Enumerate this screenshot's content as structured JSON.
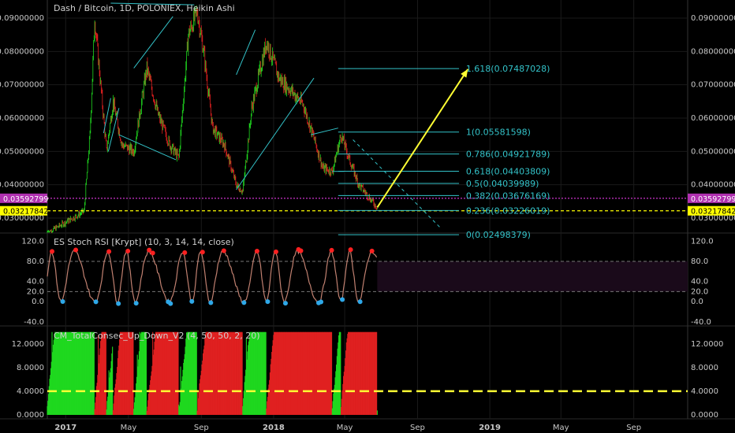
{
  "header": {
    "title": "Dash / Bitcoin, 1D, POLONIEX, Heikin Ashi"
  },
  "colors": {
    "background": "#000000",
    "grid": "#1a1a1a",
    "text": "#c8c8c8",
    "bull": "#1fd81f",
    "bear": "#e02020",
    "fib": "#33c2c8",
    "arrow": "#ffff33",
    "magenta_line": "#cc33cc",
    "yellow_line": "#ffff00",
    "stoch_line": "#c08070",
    "stoch_dot_high": "#ff2020",
    "stoch_dot_low": "#2ea8e8"
  },
  "chart_data": [
    {
      "type": "candlestick",
      "title": "Dash / Bitcoin, 1D, POLONIEX, Heikin Ashi",
      "x_tick_labels": [
        "2017",
        "May",
        "Sep",
        "2018",
        "May",
        "Sep",
        "2019",
        "May",
        "Sep"
      ],
      "y_tick_labels": [
        "0.03000000",
        "0.04000000",
        "0.05000000",
        "0.06000000",
        "0.07000000",
        "0.08000000",
        "0.09000000"
      ],
      "ylim": [
        0.0255,
        0.0945
      ],
      "price_path": [
        [
          "2016-12-15",
          0.0255
        ],
        [
          "2017-02-15",
          0.032
        ],
        [
          "2017-02-25",
          0.055
        ],
        [
          "2017-03-05",
          0.09
        ],
        [
          "2017-03-15",
          0.07
        ],
        [
          "2017-03-25",
          0.05
        ],
        [
          "2017-04-05",
          0.065
        ],
        [
          "2017-04-20",
          0.052
        ],
        [
          "2017-05-10",
          0.05
        ],
        [
          "2017-06-01",
          0.075
        ],
        [
          "2017-06-20",
          0.061
        ],
        [
          "2017-07-10",
          0.052
        ],
        [
          "2017-07-25",
          0.048
        ],
        [
          "2017-08-10",
          0.085
        ],
        [
          "2017-08-25",
          0.092
        ],
        [
          "2017-09-05",
          0.08
        ],
        [
          "2017-09-20",
          0.057
        ],
        [
          "2017-10-10",
          0.052
        ],
        [
          "2017-10-30",
          0.04
        ],
        [
          "2017-11-10",
          0.038
        ],
        [
          "2017-11-25",
          0.063
        ],
        [
          "2017-12-20",
          0.083
        ],
        [
          "2018-01-10",
          0.072
        ],
        [
          "2018-02-01",
          0.068
        ],
        [
          "2018-02-20",
          0.064
        ],
        [
          "2018-03-10",
          0.054
        ],
        [
          "2018-03-25",
          0.045
        ],
        [
          "2018-04-10",
          0.044
        ],
        [
          "2018-04-25",
          0.055
        ],
        [
          "2018-05-10",
          0.047
        ],
        [
          "2018-05-25",
          0.04
        ],
        [
          "2018-06-10",
          0.0365
        ],
        [
          "2018-06-25",
          0.0332
        ]
      ],
      "horizontal_lines": [
        {
          "value": 0.03592799,
          "label": "0.03592799",
          "style": "dotted",
          "color": "#cc33cc"
        },
        {
          "value": 0.03217842,
          "label": "0.03217842",
          "style": "dashed",
          "color": "#ffff00"
        }
      ],
      "fibonacci": {
        "start_date": "2018-04-20",
        "end_date": "2018-11-10",
        "levels": [
          {
            "value": 0.07487028,
            "label": "1.618(0.07487028)"
          },
          {
            "value": 0.05581598,
            "label": "1(0.05581598)"
          },
          {
            "value": 0.04921789,
            "label": "0.786(0.04921789)"
          },
          {
            "value": 0.04403809,
            "label": "0.618(0.04403809)"
          },
          {
            "value": 0.04039989,
            "label": "0.5(0.04039989)"
          },
          {
            "value": 0.03676169,
            "label": "0.382(0.03676169)"
          },
          {
            "value": 0.03226019,
            "label": "0.236(0.03226019)"
          },
          {
            "value": 0.02498379,
            "label": "0(0.02498379)"
          }
        ]
      },
      "arrow": {
        "from": [
          "2018-06-25",
          0.0332
        ],
        "to": [
          "2018-11-25",
          0.0747
        ]
      },
      "dashed_projection": {
        "from": [
          "2018-05-15",
          0.0535
        ],
        "to": [
          "2018-10-10",
          0.027
        ]
      }
    },
    {
      "type": "line",
      "title": "ES Stoch RSI [Krypt] (10, 3, 14, 14, close)",
      "y_tick_labels": [
        "-40.0",
        "0.0",
        "20.0",
        "40.0",
        "80.0",
        "120.0"
      ],
      "ylim": [
        -45,
        130
      ],
      "bands": [
        20,
        80
      ]
    },
    {
      "type": "bar",
      "title": "CM_TotalConsec_Up_Down_V2 (4, 50, 50, 2, 20)",
      "y_tick_labels": [
        "0.0000",
        "4.0000",
        "8.0000",
        "12.0000"
      ],
      "ylim": [
        0,
        14.5
      ],
      "threshold": 4
    }
  ]
}
